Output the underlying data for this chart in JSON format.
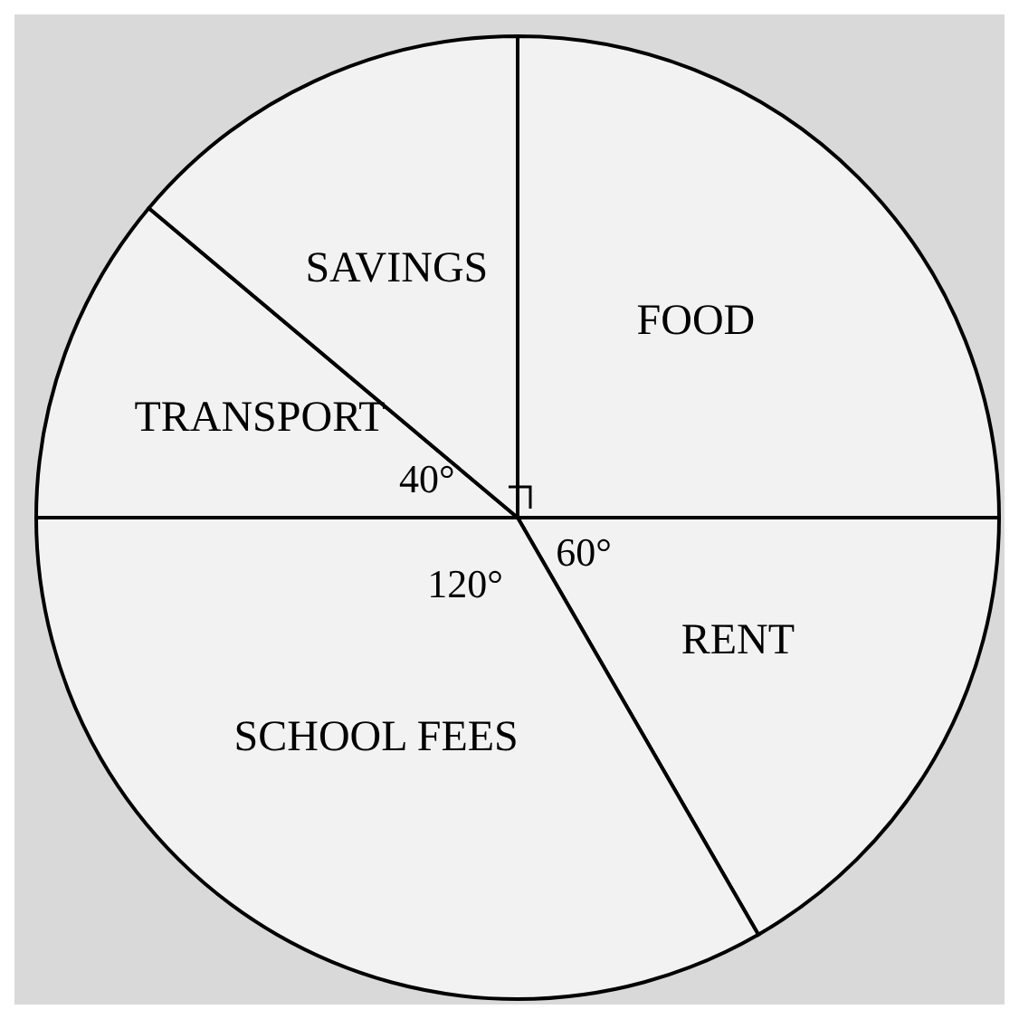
{
  "chart_data": {
    "type": "pie",
    "categories": [
      "FOOD",
      "RENT",
      "SCHOOL FEES",
      "TRANSPORT",
      "SAVINGS"
    ],
    "values": [
      90,
      60,
      120,
      40,
      50
    ],
    "value_labels": [
      null,
      "60°",
      "120°",
      "40°",
      null
    ],
    "colors": [
      "#f2f2f2",
      "#f2f2f2",
      "#f2f2f2",
      "#f2f2f2",
      "#f2f2f2"
    ]
  }
}
